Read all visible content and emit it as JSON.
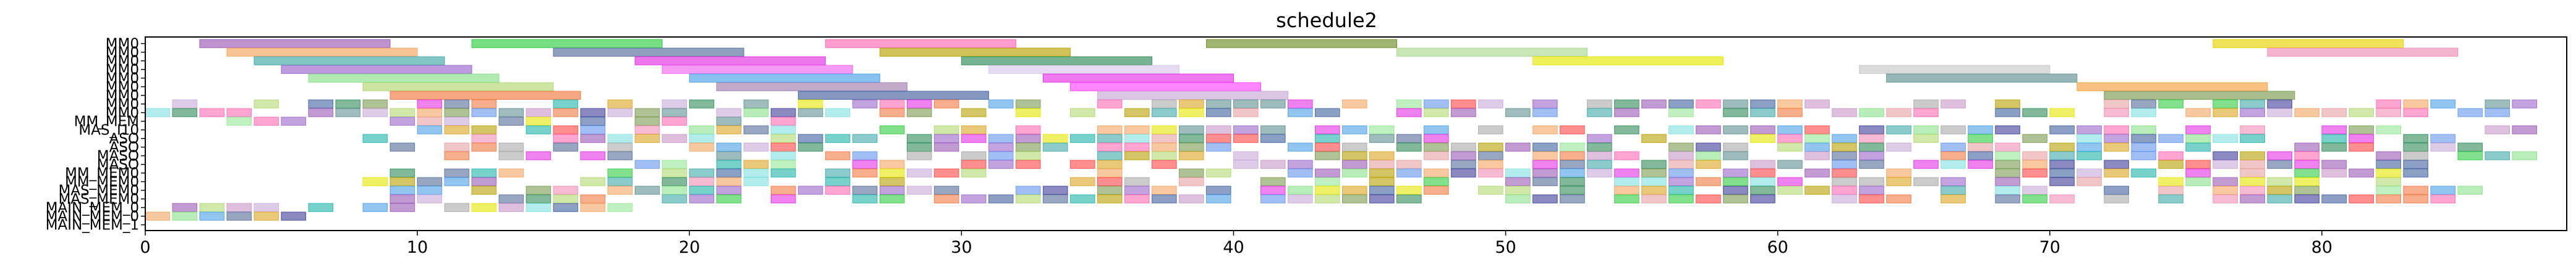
{
  "chart_data": {
    "type": "gantt",
    "title": "schedule2",
    "xlabel": "",
    "ylabel": "",
    "xlim": [
      0,
      89
    ],
    "xticks": [
      0,
      10,
      20,
      30,
      40,
      50,
      60,
      70,
      80
    ],
    "grid": false,
    "legend": "none",
    "lanes": [
      "MM0",
      "MM0",
      "MM0",
      "MM0",
      "MM0",
      "MM0",
      "MM0",
      "MM0",
      "MM0",
      "MM_MEM",
      "MAS_I10",
      "ASO",
      "ASO",
      "MASO",
      "MASO",
      "MM_MEM0",
      "MM_MEM0",
      "MAS_MEM0",
      "MAS_MEM0",
      "MAIN_MEM_0",
      "MAIN_MEM_0",
      "MAIN_MEM_1"
    ],
    "bars": [
      {
        "lane": 0,
        "start": 2,
        "end": 9,
        "color": "#9b59b6"
      },
      {
        "lane": 0,
        "start": 12,
        "end": 19,
        "color": "#2ecc40"
      },
      {
        "lane": 0,
        "start": 25,
        "end": 32,
        "color": "#ff69b4"
      },
      {
        "lane": 0,
        "start": 39,
        "end": 46,
        "color": "#6b8e23"
      },
      {
        "lane": 0,
        "start": 76,
        "end": 83,
        "color": "#e6d200"
      },
      {
        "lane": 1,
        "start": 3,
        "end": 10,
        "color": "#f4a460"
      },
      {
        "lane": 1,
        "start": 15,
        "end": 22,
        "color": "#556b9a"
      },
      {
        "lane": 1,
        "start": 27,
        "end": 34,
        "color": "#b8a000"
      },
      {
        "lane": 1,
        "start": 46,
        "end": 53,
        "color": "#a8d88f"
      },
      {
        "lane": 1,
        "start": 78,
        "end": 85,
        "color": "#f08cb4"
      },
      {
        "lane": 2,
        "start": 4,
        "end": 11,
        "color": "#40a8a8"
      },
      {
        "lane": 2,
        "start": 18,
        "end": 25,
        "color": "#e22ee2"
      },
      {
        "lane": 2,
        "start": 30,
        "end": 37,
        "color": "#2e8b57"
      },
      {
        "lane": 2,
        "start": 51,
        "end": 58,
        "color": "#e6e600"
      },
      {
        "lane": 3,
        "start": 5,
        "end": 12,
        "color": "#9966cc"
      },
      {
        "lane": 3,
        "start": 19,
        "end": 26,
        "color": "#ee66ee"
      },
      {
        "lane": 3,
        "start": 31,
        "end": 38,
        "color": "#d8c8e8"
      },
      {
        "lane": 3,
        "start": 63,
        "end": 70,
        "color": "#c8c8c8"
      },
      {
        "lane": 4,
        "start": 6,
        "end": 13,
        "color": "#88e088"
      },
      {
        "lane": 4,
        "start": 20,
        "end": 27,
        "color": "#4aa0e8"
      },
      {
        "lane": 4,
        "start": 33,
        "end": 40,
        "color": "#e62ee6"
      },
      {
        "lane": 4,
        "start": 64,
        "end": 71,
        "color": "#5f8f8f"
      },
      {
        "lane": 5,
        "start": 8,
        "end": 15,
        "color": "#b0d870"
      },
      {
        "lane": 5,
        "start": 21,
        "end": 28,
        "color": "#a07cb0"
      },
      {
        "lane": 5,
        "start": 34,
        "end": 41,
        "color": "#ff44ff"
      },
      {
        "lane": 5,
        "start": 71,
        "end": 78,
        "color": "#f4a040"
      },
      {
        "lane": 6,
        "start": 9,
        "end": 16,
        "color": "#f07840"
      },
      {
        "lane": 6,
        "start": 24,
        "end": 31,
        "color": "#4060a0"
      },
      {
        "lane": 6,
        "start": 35,
        "end": 42,
        "color": "#c8a8d8"
      },
      {
        "lane": 6,
        "start": 72,
        "end": 79,
        "color": "#7a9a50"
      }
    ],
    "slot_lanes": [
      {
        "lane": 7,
        "start": 1,
        "end": 88,
        "palette": "a"
      },
      {
        "lane": 8,
        "start": 0,
        "end": 87,
        "palette": "b"
      },
      {
        "lane": 9,
        "start": 3,
        "end": 24,
        "palette": "c"
      },
      {
        "lane": 10,
        "start": 9,
        "end": 89,
        "palette": "d"
      },
      {
        "lane": 11,
        "start": 7,
        "end": 86,
        "palette": "e"
      },
      {
        "lane": 12,
        "start": 8,
        "end": 87,
        "palette": "f"
      },
      {
        "lane": 13,
        "start": 11,
        "end": 88,
        "palette": "g"
      },
      {
        "lane": 14,
        "start": 18,
        "end": 86,
        "palette": "h"
      },
      {
        "lane": 15,
        "start": 8,
        "end": 86,
        "palette": "i"
      },
      {
        "lane": 16,
        "start": 8,
        "end": 85,
        "palette": "j"
      },
      {
        "lane": 17,
        "start": 8,
        "end": 86,
        "palette": "k"
      },
      {
        "lane": 18,
        "start": 8,
        "end": 86,
        "palette": "l"
      },
      {
        "lane": 19,
        "start": 0,
        "end": 18,
        "palette": "m"
      },
      {
        "lane": 20,
        "start": 0,
        "end": 7,
        "palette": "n"
      }
    ],
    "palette": [
      "#9b59b6",
      "#2ecc40",
      "#ff69b4",
      "#f4a460",
      "#556b9a",
      "#b8a000",
      "#40a8a8",
      "#e22ee2",
      "#2e8b57",
      "#e6e600",
      "#9966cc",
      "#88e088",
      "#4aa0e8",
      "#5f8f8f",
      "#f07840",
      "#b0d870",
      "#c8a8d8",
      "#4060a0",
      "#f08cb4",
      "#7a9a50",
      "#a8a8a8",
      "#80e0e0",
      "#ff4444",
      "#3c3c96",
      "#e6a0a0",
      "#96e696",
      "#c896c8",
      "#6495ed",
      "#daa520",
      "#20b2aa"
    ]
  }
}
